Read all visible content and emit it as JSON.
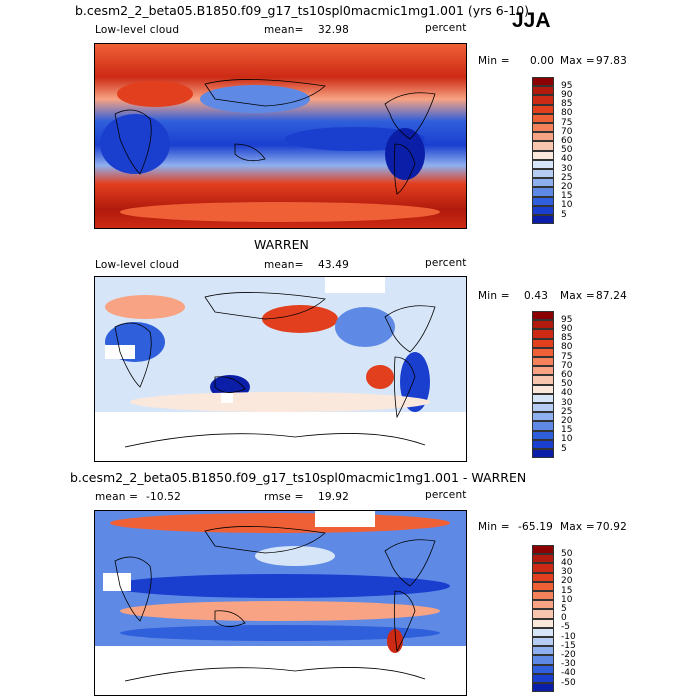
{
  "season": "JJA",
  "panels": [
    {
      "title": "b.cesm2_2_beta05.B1850.f09_g17_ts10spl0macmic1mg1.001 (yrs 6-10)",
      "left_label": "Low-level cloud",
      "stat_label": "mean=",
      "stat_value": "32.98",
      "units": "percent",
      "min_label": "Min =",
      "min_value": "0.00",
      "max_label": "Max =",
      "max_value": "97.83"
    },
    {
      "title": "WARREN",
      "left_label": "Low-level cloud",
      "stat_label": "mean=",
      "stat_value": "43.49",
      "units": "percent",
      "min_label": "Min =",
      "min_value": "0.43",
      "max_label": "Max =",
      "max_value": "87.24"
    },
    {
      "title": "b.cesm2_2_beta05.B1850.f09_g17_ts10spl0macmic1mg1.001 - WARREN",
      "left_label": "mean =",
      "left_value": "-10.52",
      "stat_label": "rmse =",
      "stat_value": "19.92",
      "units": "percent",
      "min_label": "Min =",
      "min_value": "-65.19",
      "max_label": "Max =",
      "max_value": "70.92"
    }
  ],
  "colorbars": {
    "abs": {
      "labels": [
        "95",
        "90",
        "85",
        "80",
        "75",
        "70",
        "60",
        "50",
        "40",
        "30",
        "25",
        "20",
        "15",
        "10",
        "5"
      ],
      "colors": [
        "#8b0000",
        "#b11a0c",
        "#cc2a14",
        "#e23f1f",
        "#f06037",
        "#f5825a",
        "#f8a383",
        "#f8c6ae",
        "#fbe8dd",
        "#d6e6f8",
        "#b5cdf3",
        "#8fb0ee",
        "#5e8ae6",
        "#2f5fdb",
        "#1a3fcf",
        "#0b1ea8"
      ]
    },
    "diff": {
      "labels": [
        "50",
        "40",
        "30",
        "20",
        "15",
        "10",
        "5",
        "0",
        "-5",
        "-10",
        "-15",
        "-20",
        "-30",
        "-40",
        "-50"
      ],
      "colors": [
        "#8b0000",
        "#b11a0c",
        "#cc2a14",
        "#e23f1f",
        "#f06037",
        "#f5825a",
        "#f8a383",
        "#f8c6ae",
        "#fbe8dd",
        "#d6e6f8",
        "#b5cdf3",
        "#8fb0ee",
        "#5e8ae6",
        "#2f5fdb",
        "#1a3fcf",
        "#0b1ea8"
      ]
    }
  }
}
